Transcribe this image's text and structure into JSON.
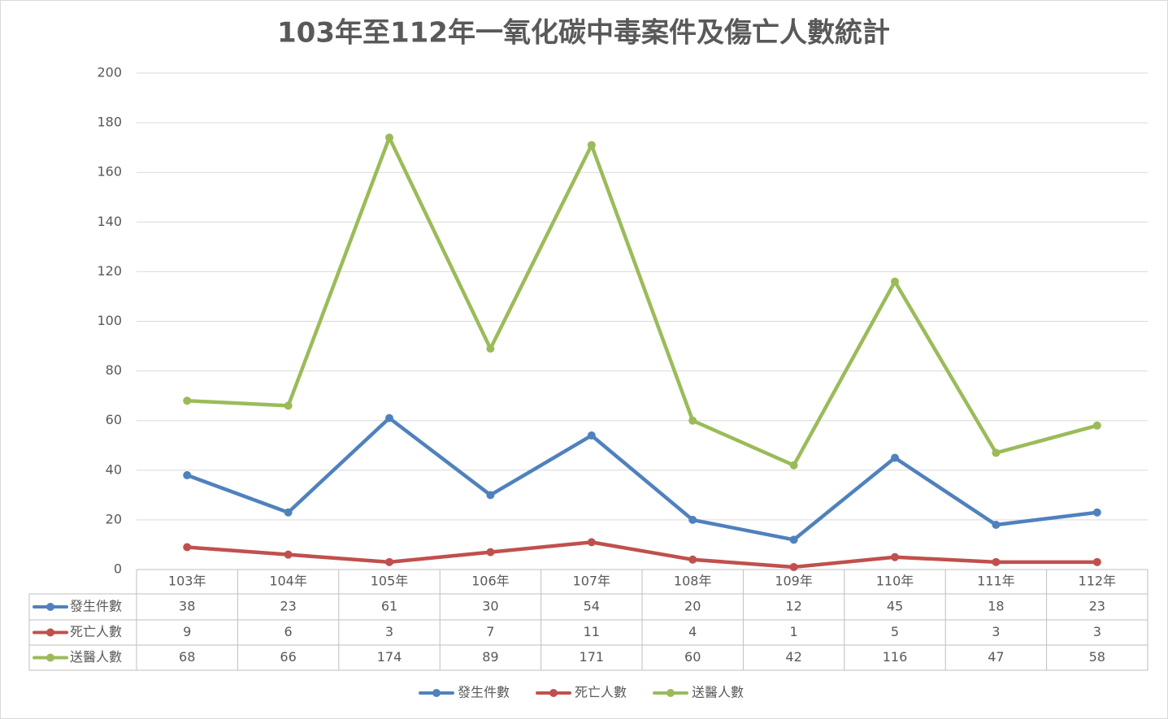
{
  "chart_data": {
    "type": "line",
    "title": "103年至112年一氧化碳中毒案件及傷亡人數統計",
    "categories": [
      "103年",
      "104年",
      "105年",
      "106年",
      "107年",
      "108年",
      "109年",
      "110年",
      "111年",
      "112年"
    ],
    "series": [
      {
        "name": "發生件數",
        "color": "#4f81bd",
        "values": [
          38,
          23,
          61,
          30,
          54,
          20,
          12,
          45,
          18,
          23
        ]
      },
      {
        "name": "死亡人數",
        "color": "#c0504d",
        "values": [
          9,
          6,
          3,
          7,
          11,
          4,
          1,
          5,
          3,
          3
        ]
      },
      {
        "name": "送醫人數",
        "color": "#9bbb59",
        "values": [
          68,
          66,
          174,
          89,
          171,
          60,
          42,
          116,
          47,
          58
        ]
      }
    ],
    "ylim": [
      0,
      200
    ],
    "yticks": [
      0,
      20,
      40,
      60,
      80,
      100,
      120,
      140,
      160,
      180,
      200
    ],
    "grid": true,
    "legend": "bottom",
    "data_table": true
  }
}
